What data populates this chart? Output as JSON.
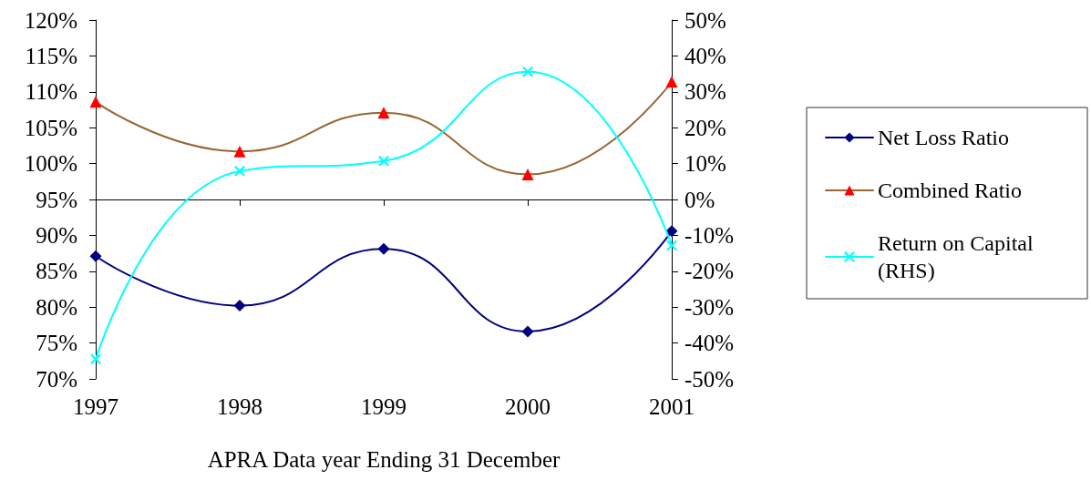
{
  "chart_data": {
    "type": "line",
    "xlabel": "APRA Data year Ending 31 December",
    "categories": [
      "1997",
      "1998",
      "1999",
      "2000",
      "2001"
    ],
    "ylim": [
      70,
      120
    ],
    "yticks": [
      {
        "value": 70,
        "label": "70%"
      },
      {
        "value": 75,
        "label": "75%"
      },
      {
        "value": 80,
        "label": "80%"
      },
      {
        "value": 85,
        "label": "85%"
      },
      {
        "value": 90,
        "label": "90%"
      },
      {
        "value": 95,
        "label": "95%"
      },
      {
        "value": 100,
        "label": "100%"
      },
      {
        "value": 105,
        "label": "105%"
      },
      {
        "value": 110,
        "label": "110%"
      },
      {
        "value": 115,
        "label": "115%"
      },
      {
        "value": 120,
        "label": "120%"
      }
    ],
    "y2lim": [
      -50,
      50
    ],
    "y2ticks": [
      {
        "value": -50,
        "label": "-50%"
      },
      {
        "value": -40,
        "label": "-40%"
      },
      {
        "value": -30,
        "label": "-30%"
      },
      {
        "value": -20,
        "label": "-20%"
      },
      {
        "value": -10,
        "label": "-10%"
      },
      {
        "value": 0,
        "label": "0%"
      },
      {
        "value": 10,
        "label": "10%"
      },
      {
        "value": 20,
        "label": "20%"
      },
      {
        "value": 30,
        "label": "30%"
      },
      {
        "value": 40,
        "label": "40%"
      },
      {
        "value": 50,
        "label": "50%"
      }
    ],
    "series": [
      {
        "name": "Net Loss Ratio",
        "color": "#000080",
        "marker": "diamond",
        "values": [
          87.1,
          80.2,
          88.1,
          76.6,
          90.6
        ]
      },
      {
        "name": "Combined Ratio",
        "color": "#996633",
        "colors": [
          "#ff0000",
          "#ff0000",
          "#ff0000",
          "#ff0000",
          "#ff0000"
        ],
        "marker": "triangle",
        "values": [
          108.6,
          101.7,
          107.1,
          98.5,
          111.4
        ]
      },
      {
        "name": "Return on Capital (RHS)",
        "color": "#00ffff",
        "marker": "cross",
        "axis": "y2",
        "values": [
          -44.5,
          7.9,
          10.7,
          35.6,
          -12.8
        ]
      }
    ],
    "legend": "right"
  }
}
